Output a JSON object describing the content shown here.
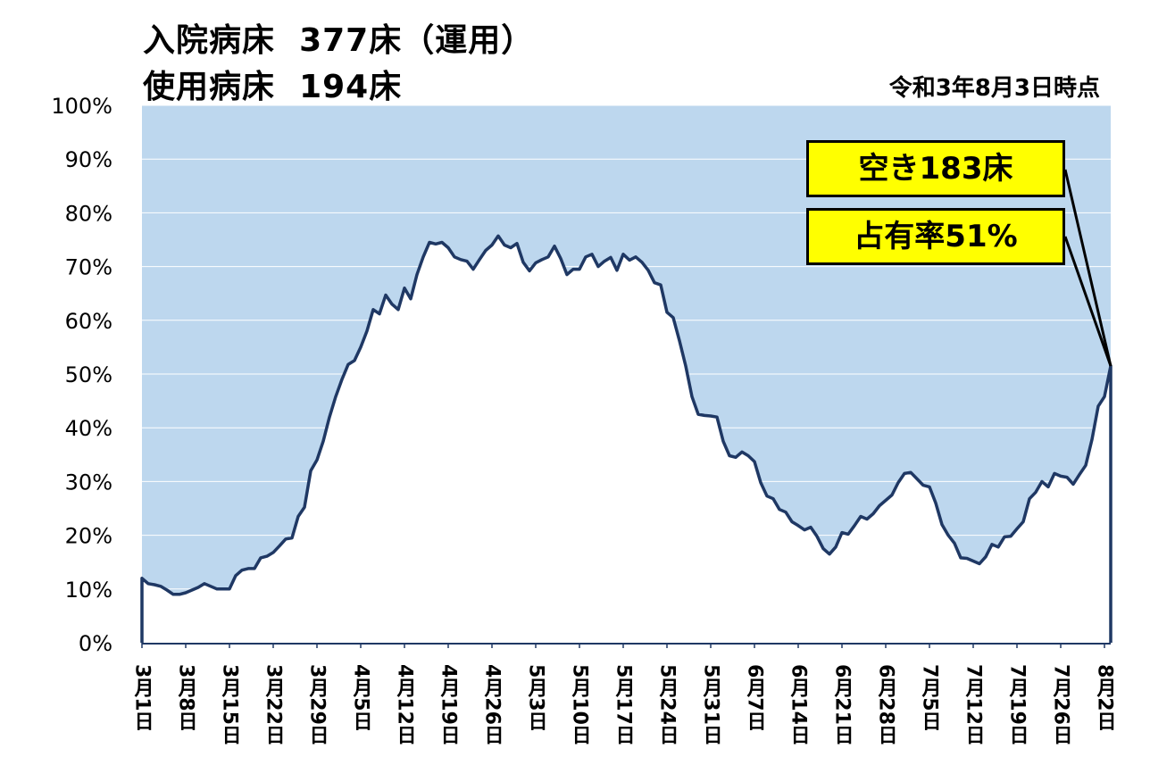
{
  "header": {
    "line1": "入院病床  377床（運用）",
    "line2": "使用病床  194床",
    "as_of": "令和3年8月3日時点"
  },
  "callouts": {
    "vacant": "空き183床",
    "occupancy": "占有率51%"
  },
  "colors": {
    "fill": "#bdd7ee",
    "line": "#1f3864",
    "callout_bg": "#ffff00"
  },
  "chart_data": {
    "type": "area",
    "title": "",
    "xlabel": "",
    "ylabel": "",
    "ylim": [
      0,
      100
    ],
    "yticks": [
      "0%",
      "10%",
      "20%",
      "30%",
      "40%",
      "50%",
      "60%",
      "70%",
      "80%",
      "90%",
      "100%"
    ],
    "grid": true,
    "x_range": [
      "3月1日",
      "8月2日"
    ],
    "xtick_labels": [
      "3月1日",
      "3月8日",
      "3月15日",
      "3月22日",
      "3月29日",
      "4月5日",
      "4月12日",
      "4月19日",
      "4月26日",
      "5月3日",
      "5月10日",
      "5月17日",
      "5月24日",
      "5月31日",
      "6月7日",
      "6月14日",
      "6月21日",
      "6月28日",
      "7月5日",
      "7月12日",
      "7月19日",
      "7月26日",
      "8月2日"
    ],
    "series": [
      {
        "values": [
          12,
          11,
          10.8,
          10.5,
          9.8,
          9,
          9,
          9.3,
          9.8,
          10.3,
          11,
          10.5,
          10,
          10,
          10,
          12.5,
          13.5,
          13.8,
          13.8,
          15.8,
          16.1,
          16.8,
          18,
          19.3,
          19.5,
          23.5,
          25.2,
          32,
          34,
          37.5,
          42,
          45.8,
          49,
          51.8,
          52.5,
          55,
          58,
          62,
          61.2,
          64.7,
          63,
          62,
          66,
          64,
          68.5,
          71.8,
          74.5,
          74.2,
          74.5,
          73.5,
          71.8,
          71.3,
          71,
          69.5,
          71.3,
          73,
          74,
          75.7,
          74,
          73.5,
          74.3,
          70.8,
          69.2,
          70.7,
          71.3,
          71.8,
          73.8,
          71.5,
          68.5,
          69.5,
          69.5,
          71.8,
          72.3,
          70,
          71,
          71.7,
          69.3,
          72.3,
          71.2,
          71.8,
          70.8,
          69.3,
          67,
          66.6,
          61.5,
          60.5,
          56.2,
          51.5,
          45.8,
          42.5,
          42.3,
          42.2,
          42,
          37.5,
          34.8,
          34.5,
          35.5,
          34.8,
          33.7,
          29.8,
          27.3,
          26.8,
          24.8,
          24.3,
          22.5,
          21.8,
          21,
          21.5,
          19.8,
          17.5,
          16.5,
          17.8,
          20.5,
          20.2,
          21.8,
          23.5,
          23,
          24,
          25.5,
          26.5,
          27.5,
          29.8,
          31.5,
          31.7,
          30.5,
          29.3,
          29,
          26,
          22,
          20,
          18.5,
          15.8,
          15.7,
          15.2,
          14.7,
          16,
          18.3,
          17.8,
          19.7,
          19.8,
          21.2,
          22.5,
          26.8,
          28,
          30,
          29,
          31.5,
          31,
          30.8,
          29.5,
          31.3,
          33,
          37.8,
          44,
          45.8,
          51.5
        ]
      }
    ],
    "annotations": [
      "空き183床",
      "占有率51%"
    ]
  }
}
